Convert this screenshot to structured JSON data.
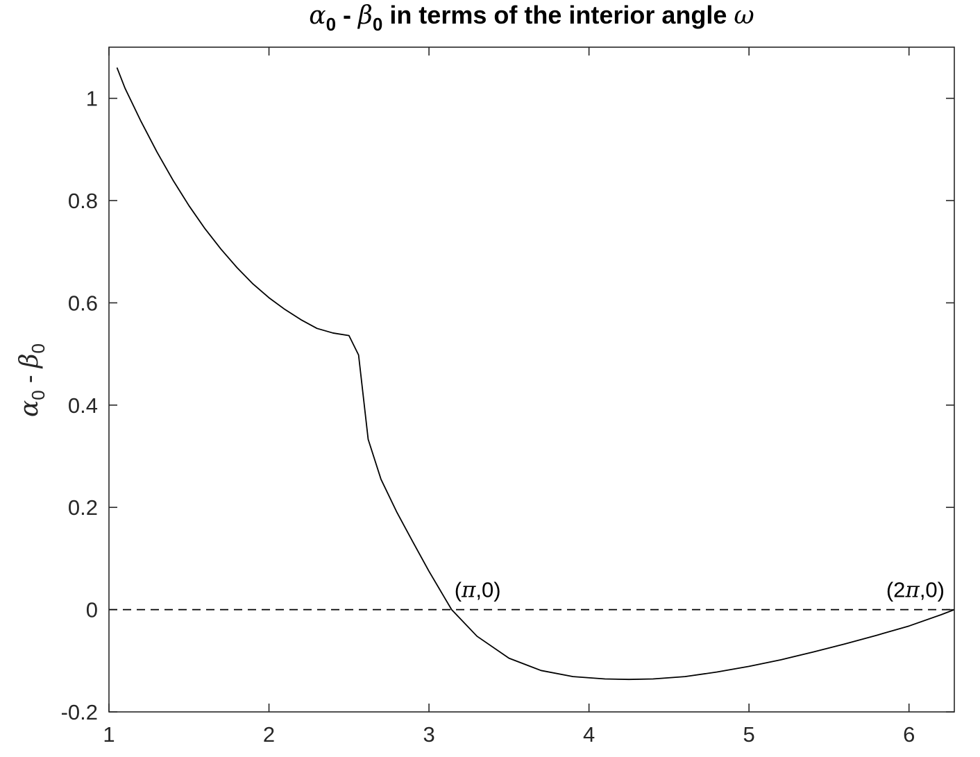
{
  "chart_data": {
    "type": "line",
    "title": {
      "alpha_symbol": "α",
      "alpha_sub": "0",
      "separator": " - ",
      "beta_symbol": "β",
      "beta_sub": "0",
      "text_part": " in terms of the interior angle ",
      "omega_symbol": "ω"
    },
    "ylabel": {
      "alpha_symbol": "α",
      "alpha_sub": "0",
      "separator": " - ",
      "beta_symbol": "β",
      "beta_sub": "0"
    },
    "xlabel": "",
    "xlim": [
      1.0,
      6.2832
    ],
    "ylim": [
      -0.2,
      1.1
    ],
    "x_ticks": [
      1,
      2,
      3,
      4,
      5,
      6
    ],
    "x_tick_labels": [
      "1",
      "2",
      "3",
      "4",
      "5",
      "6"
    ],
    "y_ticks": [
      -0.2,
      0,
      0.2,
      0.4,
      0.6,
      0.8,
      1
    ],
    "y_tick_labels": [
      "-0.2",
      "0",
      "0.2",
      "0.4",
      "0.6",
      "0.8",
      "1"
    ],
    "grid": false,
    "box": true,
    "series": [
      {
        "style": "solid",
        "color": "#000000",
        "points": [
          [
            1.05,
            1.06
          ],
          [
            1.1,
            1.02
          ],
          [
            1.2,
            0.955
          ],
          [
            1.3,
            0.895
          ],
          [
            1.4,
            0.84
          ],
          [
            1.5,
            0.79
          ],
          [
            1.6,
            0.745
          ],
          [
            1.7,
            0.705
          ],
          [
            1.8,
            0.669
          ],
          [
            1.9,
            0.637
          ],
          [
            2.0,
            0.61
          ],
          [
            2.1,
            0.587
          ],
          [
            2.2,
            0.567
          ],
          [
            2.3,
            0.55
          ],
          [
            2.4,
            0.541
          ],
          [
            2.5,
            0.536
          ],
          [
            2.56,
            0.498
          ],
          [
            2.62,
            0.333
          ],
          [
            2.7,
            0.255
          ],
          [
            2.8,
            0.19
          ],
          [
            2.9,
            0.132
          ],
          [
            3.0,
            0.075
          ],
          [
            3.1,
            0.022
          ],
          [
            3.1416,
            0.0
          ],
          [
            3.3,
            -0.052
          ],
          [
            3.5,
            -0.095
          ],
          [
            3.7,
            -0.119
          ],
          [
            3.9,
            -0.131
          ],
          [
            4.1,
            -0.1355
          ],
          [
            4.25,
            -0.1365
          ],
          [
            4.4,
            -0.1355
          ],
          [
            4.6,
            -0.131
          ],
          [
            4.8,
            -0.122
          ],
          [
            5.0,
            -0.111
          ],
          [
            5.2,
            -0.098
          ],
          [
            5.4,
            -0.083
          ],
          [
            5.6,
            -0.067
          ],
          [
            5.8,
            -0.05
          ],
          [
            6.0,
            -0.032
          ],
          [
            6.2,
            -0.01
          ],
          [
            6.2832,
            0.0
          ]
        ]
      },
      {
        "style": "dashed",
        "color": "#000000",
        "points": [
          [
            1.0,
            0.0
          ],
          [
            6.2832,
            0.0
          ]
        ]
      }
    ],
    "annotations": [
      {
        "text_open": "(",
        "symbol": "π",
        "text_close": ",0)",
        "x": 3.1416,
        "y": 0.0
      },
      {
        "text_open": "(2",
        "symbol": "π",
        "text_close": ",0)",
        "x": 6.2832,
        "y": 0.0
      }
    ]
  }
}
